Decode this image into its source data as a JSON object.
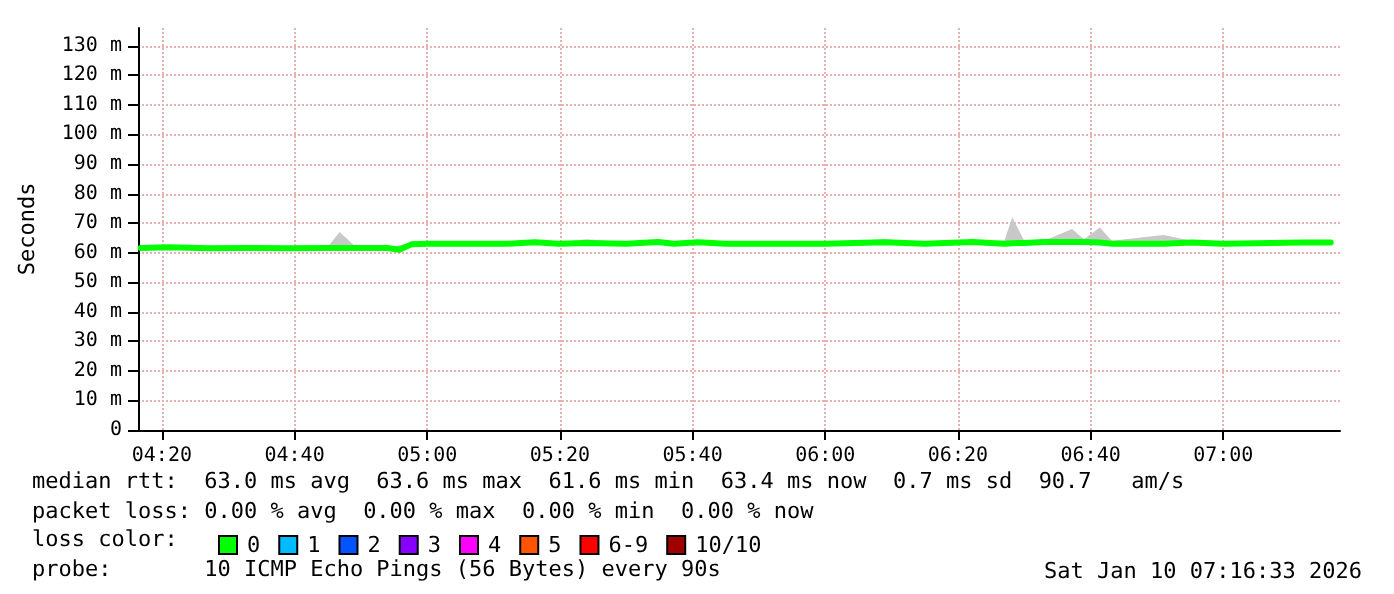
{
  "chart_data": {
    "type": "line",
    "ylabel": "Seconds",
    "legend_title": "loss color:",
    "legend": "bottom",
    "grid": true,
    "marker": "none",
    "line_style": "solid",
    "xlim": [
      4.2733,
      7.2933
    ],
    "xticks": [
      {
        "value": 4.3333,
        "label": "04:20"
      },
      {
        "value": 4.6667,
        "label": "04:40"
      },
      {
        "value": 5,
        "label": "05:00"
      },
      {
        "value": 5.3333,
        "label": "05:20"
      },
      {
        "value": 5.6667,
        "label": "05:40"
      },
      {
        "value": 6,
        "label": "06:00"
      },
      {
        "value": 6.3333,
        "label": "06:20"
      },
      {
        "value": 6.6667,
        "label": "06:40"
      },
      {
        "value": 7,
        "label": "07:00"
      }
    ],
    "ylim": [
      0,
      136
    ],
    "yticks": [
      {
        "value": 0,
        "label": "0"
      },
      {
        "value": 10,
        "label": "10 m"
      },
      {
        "value": 20,
        "label": "20 m"
      },
      {
        "value": 30,
        "label": "30 m"
      },
      {
        "value": 40,
        "label": "40 m"
      },
      {
        "value": 50,
        "label": "50 m"
      },
      {
        "value": 60,
        "label": "60 m"
      },
      {
        "value": 70,
        "label": "70 m"
      },
      {
        "value": 80,
        "label": "80 m"
      },
      {
        "value": 90,
        "label": "90 m"
      },
      {
        "value": 100,
        "label": "100 m"
      },
      {
        "value": 110,
        "label": "110 m"
      },
      {
        "value": 120,
        "label": "120 m"
      },
      {
        "value": 130,
        "label": "130 m"
      }
    ],
    "x": [
      4.28,
      4.35,
      4.45,
      4.55,
      4.65,
      4.75,
      4.78,
      4.82,
      4.9,
      4.93,
      4.96,
      5.0,
      5.2,
      5.27,
      5.33,
      5.4,
      5.5,
      5.58,
      5.62,
      5.68,
      5.75,
      6.0,
      6.15,
      6.25,
      6.37,
      6.45,
      6.47,
      6.5,
      6.55,
      6.62,
      6.65,
      6.69,
      6.72,
      6.85,
      6.92,
      7.0,
      7.2,
      7.27
    ],
    "series": [
      {
        "name": "0",
        "color": "#00ff00",
        "values": [
          61.6,
          61.8,
          61.5,
          61.6,
          61.5,
          61.6,
          61.6,
          61.6,
          61.6,
          61.0,
          62.8,
          63.0,
          63.0,
          63.5,
          63.0,
          63.3,
          63.0,
          63.6,
          63.0,
          63.5,
          63.0,
          63.0,
          63.5,
          63.0,
          63.6,
          63.0,
          63.2,
          63.3,
          63.6,
          63.6,
          63.6,
          63.4,
          63.0,
          63.0,
          63.4,
          63.0,
          63.4,
          63.4
        ],
        "lower": [
          61.2,
          61.4,
          61.1,
          61.2,
          61.1,
          61.2,
          61.2,
          61.2,
          61.2,
          60.6,
          62.4,
          62.6,
          62.6,
          63.0,
          62.6,
          62.9,
          62.6,
          63.2,
          62.6,
          63.0,
          62.6,
          62.6,
          63.0,
          62.6,
          63.1,
          62.6,
          62.8,
          62.9,
          63.2,
          63.2,
          63.2,
          63.0,
          62.6,
          62.6,
          63.0,
          62.6,
          63.0,
          63.0
        ],
        "upper": [
          62.0,
          62.2,
          61.9,
          62.0,
          61.9,
          62.0,
          67.0,
          62.0,
          62.0,
          62.5,
          63.4,
          63.4,
          63.4,
          63.9,
          63.4,
          64.5,
          63.4,
          64.0,
          63.4,
          63.9,
          63.4,
          63.4,
          64.5,
          63.4,
          64.0,
          64.0,
          72.0,
          64.0,
          64.0,
          68.0,
          64.5,
          68.5,
          64.0,
          66.0,
          64.0,
          63.4,
          63.8,
          63.8
        ]
      },
      {
        "name": "1",
        "color": "#00bbff",
        "values": [
          null,
          null,
          null,
          null,
          null,
          null,
          null,
          null,
          null,
          null,
          null,
          null,
          null,
          null,
          null,
          null,
          null,
          null,
          null,
          null,
          null,
          null,
          null,
          null,
          null,
          null,
          null,
          null,
          null,
          null,
          null,
          null,
          null,
          null,
          null,
          null,
          null,
          null
        ]
      },
      {
        "name": "2",
        "color": "#0055ff",
        "values": [
          null,
          null,
          null,
          null,
          null,
          null,
          null,
          null,
          null,
          null,
          null,
          null,
          null,
          null,
          null,
          null,
          null,
          null,
          null,
          null,
          null,
          null,
          null,
          null,
          null,
          null,
          null,
          null,
          null,
          null,
          null,
          null,
          null,
          null,
          null,
          null,
          null,
          null
        ]
      },
      {
        "name": "3",
        "color": "#8800ff",
        "values": [
          null,
          null,
          null,
          null,
          null,
          null,
          null,
          null,
          null,
          null,
          null,
          null,
          null,
          null,
          null,
          null,
          null,
          null,
          null,
          null,
          null,
          null,
          null,
          null,
          null,
          null,
          null,
          null,
          null,
          null,
          null,
          null,
          null,
          null,
          null,
          null,
          null,
          null
        ]
      },
      {
        "name": "4",
        "color": "#ff00ff",
        "values": [
          null,
          null,
          null,
          null,
          null,
          null,
          null,
          null,
          null,
          null,
          null,
          null,
          null,
          null,
          null,
          null,
          null,
          null,
          null,
          null,
          null,
          null,
          null,
          null,
          null,
          null,
          null,
          null,
          null,
          null,
          null,
          null,
          null,
          null,
          null,
          null,
          null,
          null
        ]
      },
      {
        "name": "5",
        "color": "#ff5500",
        "values": [
          null,
          null,
          null,
          null,
          null,
          null,
          null,
          null,
          null,
          null,
          null,
          null,
          null,
          null,
          null,
          null,
          null,
          null,
          null,
          null,
          null,
          null,
          null,
          null,
          null,
          null,
          null,
          null,
          null,
          null,
          null,
          null,
          null,
          null,
          null,
          null,
          null,
          null
        ]
      },
      {
        "name": "6-9",
        "color": "#ff0000",
        "values": [
          null,
          null,
          null,
          null,
          null,
          null,
          null,
          null,
          null,
          null,
          null,
          null,
          null,
          null,
          null,
          null,
          null,
          null,
          null,
          null,
          null,
          null,
          null,
          null,
          null,
          null,
          null,
          null,
          null,
          null,
          null,
          null,
          null,
          null,
          null,
          null,
          null,
          null
        ]
      },
      {
        "name": "10/10",
        "color": "#a00000",
        "values": [
          null,
          null,
          null,
          null,
          null,
          null,
          null,
          null,
          null,
          null,
          null,
          null,
          null,
          null,
          null,
          null,
          null,
          null,
          null,
          null,
          null,
          null,
          null,
          null,
          null,
          null,
          null,
          null,
          null,
          null,
          null,
          null,
          null,
          null,
          null,
          null,
          null,
          null
        ]
      }
    ],
    "annotations": [
      "median rtt:  63.0 ms avg  63.6 ms max  61.6 ms min  63.4 ms now  0.7 ms sd  90.7   am/s",
      "packet loss: 0.00 % avg  0.00 % max  0.00 % min  0.00 % now",
      "probe:       10 ICMP Echo Pings (56 Bytes) every 90s",
      "Sat Jan 10 07:16:33 2026"
    ]
  }
}
